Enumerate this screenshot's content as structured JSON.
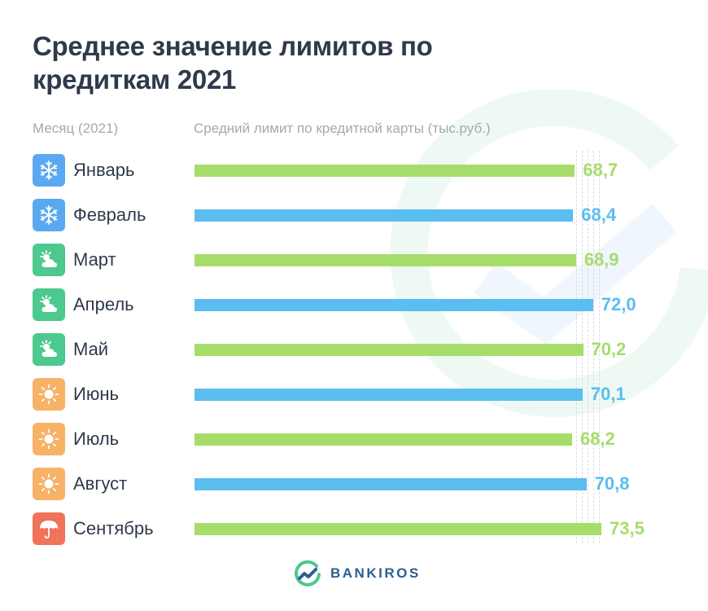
{
  "title": "Среднее значение лимитов по кредиткам 2021",
  "headers": {
    "month": "Месяц (2021)",
    "value": "Средний лимит по кредитной карты (тыс.руб.)"
  },
  "chart_data": {
    "type": "bar",
    "orientation": "horizontal",
    "categories": [
      "Январь",
      "Февраль",
      "Март",
      "Апрель",
      "Май",
      "Июнь",
      "Июль",
      "Август",
      "Сентябрь"
    ],
    "values": [
      68.7,
      68.4,
      68.9,
      72.0,
      70.2,
      70.1,
      68.2,
      70.8,
      73.5
    ],
    "value_labels": [
      "68,7",
      "68,4",
      "68,9",
      "72,0",
      "70,2",
      "70,1",
      "68,2",
      "70,8",
      "73,5"
    ],
    "icons": [
      "snowflake-icon",
      "snowflake-icon",
      "sun-cloud-icon",
      "sun-cloud-icon",
      "sun-cloud-icon",
      "sun-icon",
      "sun-icon",
      "sun-icon",
      "umbrella-icon"
    ],
    "icon_colors": [
      "#5aa9f0",
      "#5aa9f0",
      "#4dc88f",
      "#4dc88f",
      "#4dc88f",
      "#f7b267",
      "#f7b267",
      "#f7b267",
      "#f0735a"
    ],
    "bar_colors": [
      "#a6dd6a",
      "#5bbdf0",
      "#a6dd6a",
      "#5bbdf0",
      "#a6dd6a",
      "#5bbdf0",
      "#a6dd6a",
      "#5bbdf0",
      "#a6dd6a"
    ],
    "grid": true
  },
  "logo": {
    "text": "BANKIROS"
  }
}
